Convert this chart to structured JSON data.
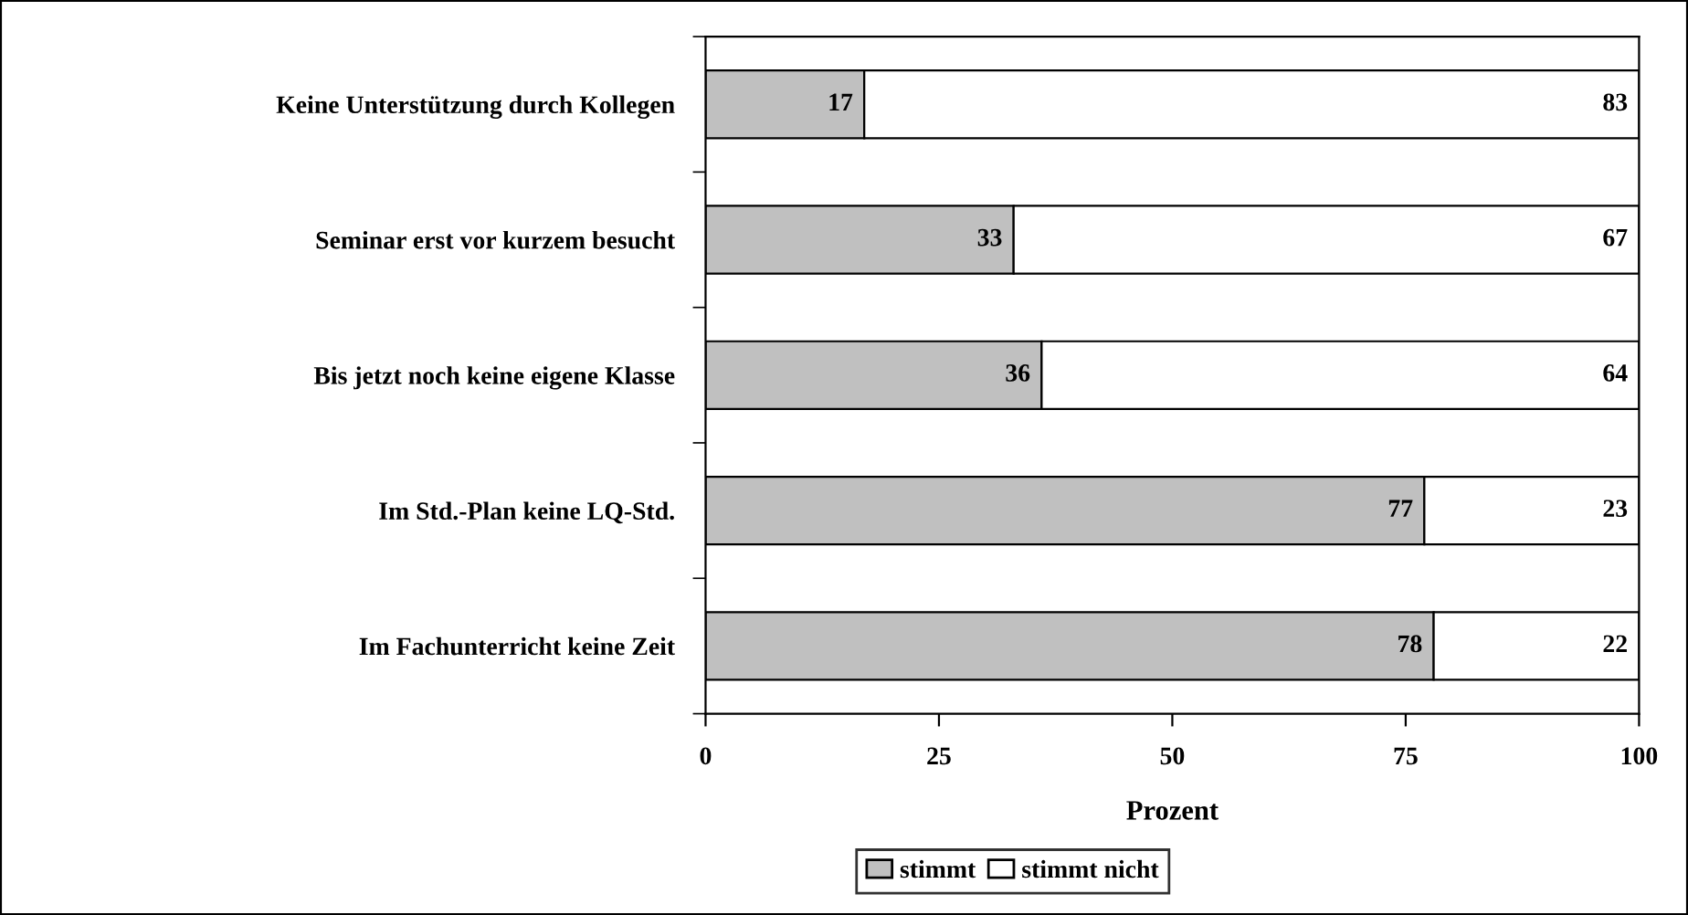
{
  "chart_data": {
    "type": "bar",
    "orientation": "horizontal",
    "stacked": true,
    "xlabel": "Prozent",
    "categories": [
      "Keine Unterstützung durch Kollegen",
      "Seminar erst vor kurzem besucht",
      "Bis jetzt noch keine eigene Klasse",
      "Im Std.-Plan keine LQ-Std.",
      "Im Fachunterricht keine Zeit"
    ],
    "series": [
      {
        "name": "stimmt",
        "color": "#c0c0c0",
        "values": [
          17,
          33,
          36,
          77,
          78
        ]
      },
      {
        "name": "stimmt nicht",
        "color": "#ffffff",
        "values": [
          83,
          67,
          64,
          23,
          22
        ]
      }
    ],
    "xlim": [
      0,
      100
    ],
    "xticks": [
      0,
      25,
      50,
      75,
      100
    ],
    "grid": false,
    "legend": "bottom",
    "data_labels": true
  }
}
